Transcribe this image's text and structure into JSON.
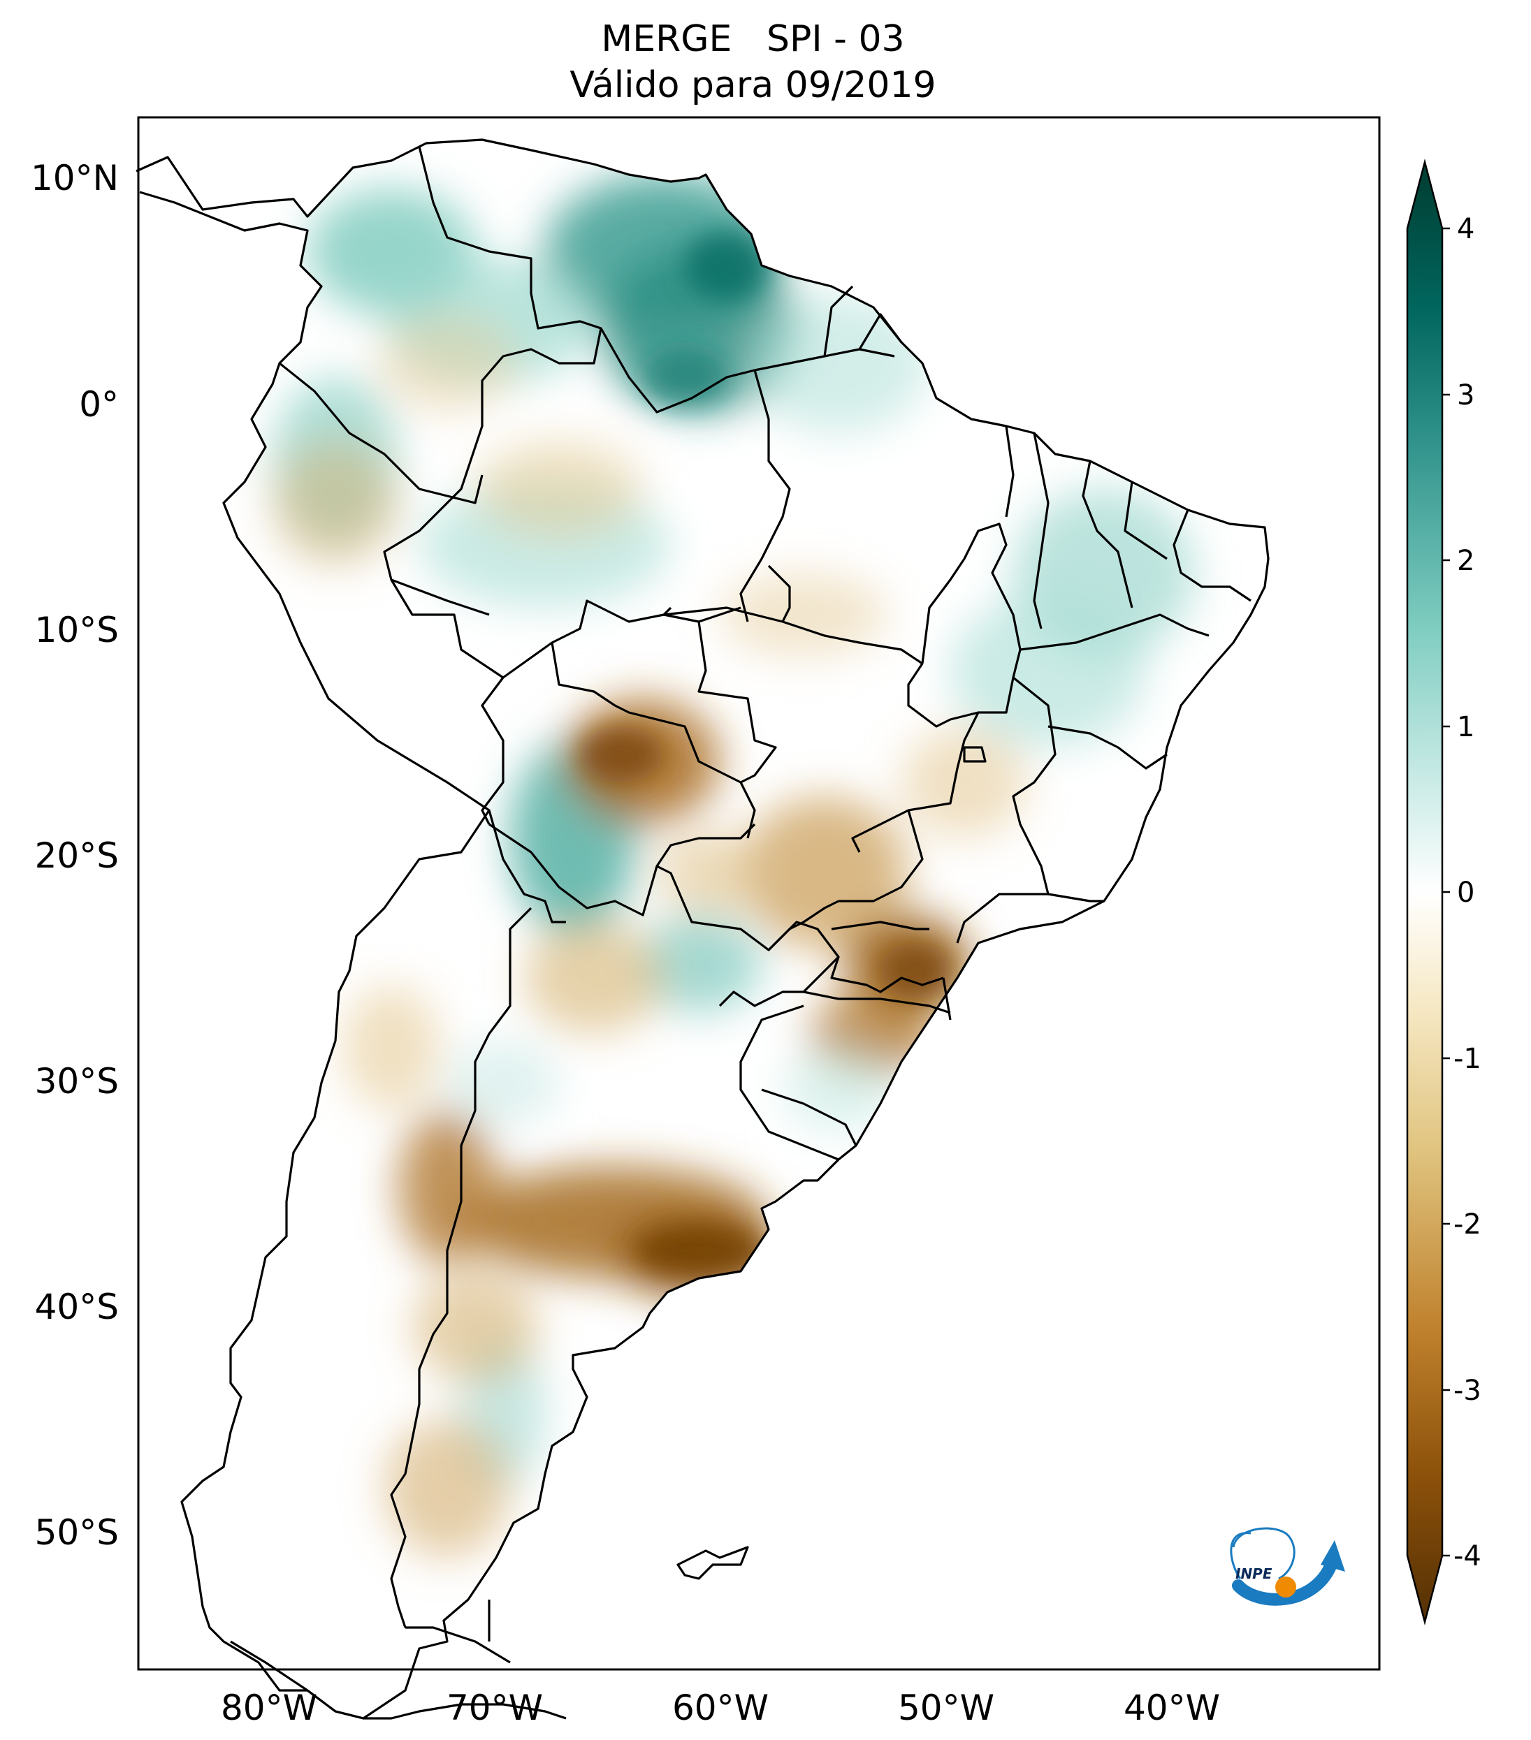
{
  "title": {
    "line1": "MERGE   SPI - 03",
    "line2": "Válido para 09/2019"
  },
  "map": {
    "lat_ticks": [
      "10°N",
      "0°",
      "10°S",
      "20°S",
      "30°S",
      "40°S",
      "50°S"
    ],
    "lon_ticks": [
      "80°W",
      "70°W",
      "60°W",
      "50°W",
      "40°W"
    ],
    "lon_range": [
      -85,
      -30
    ],
    "lat_range": [
      -56,
      12
    ]
  },
  "colorbar": {
    "ticks": [
      "4",
      "3",
      "2",
      "1",
      "0",
      "-1",
      "-2",
      "-3",
      "-4"
    ],
    "colors": [
      "#543005",
      "#8c510a",
      "#bf812d",
      "#dfc27d",
      "#f6e8c3",
      "#ffffff",
      "#c7eae5",
      "#80cdc1",
      "#35978f",
      "#01665e",
      "#003c30"
    ]
  },
  "logo": {
    "text": "INPE"
  }
}
